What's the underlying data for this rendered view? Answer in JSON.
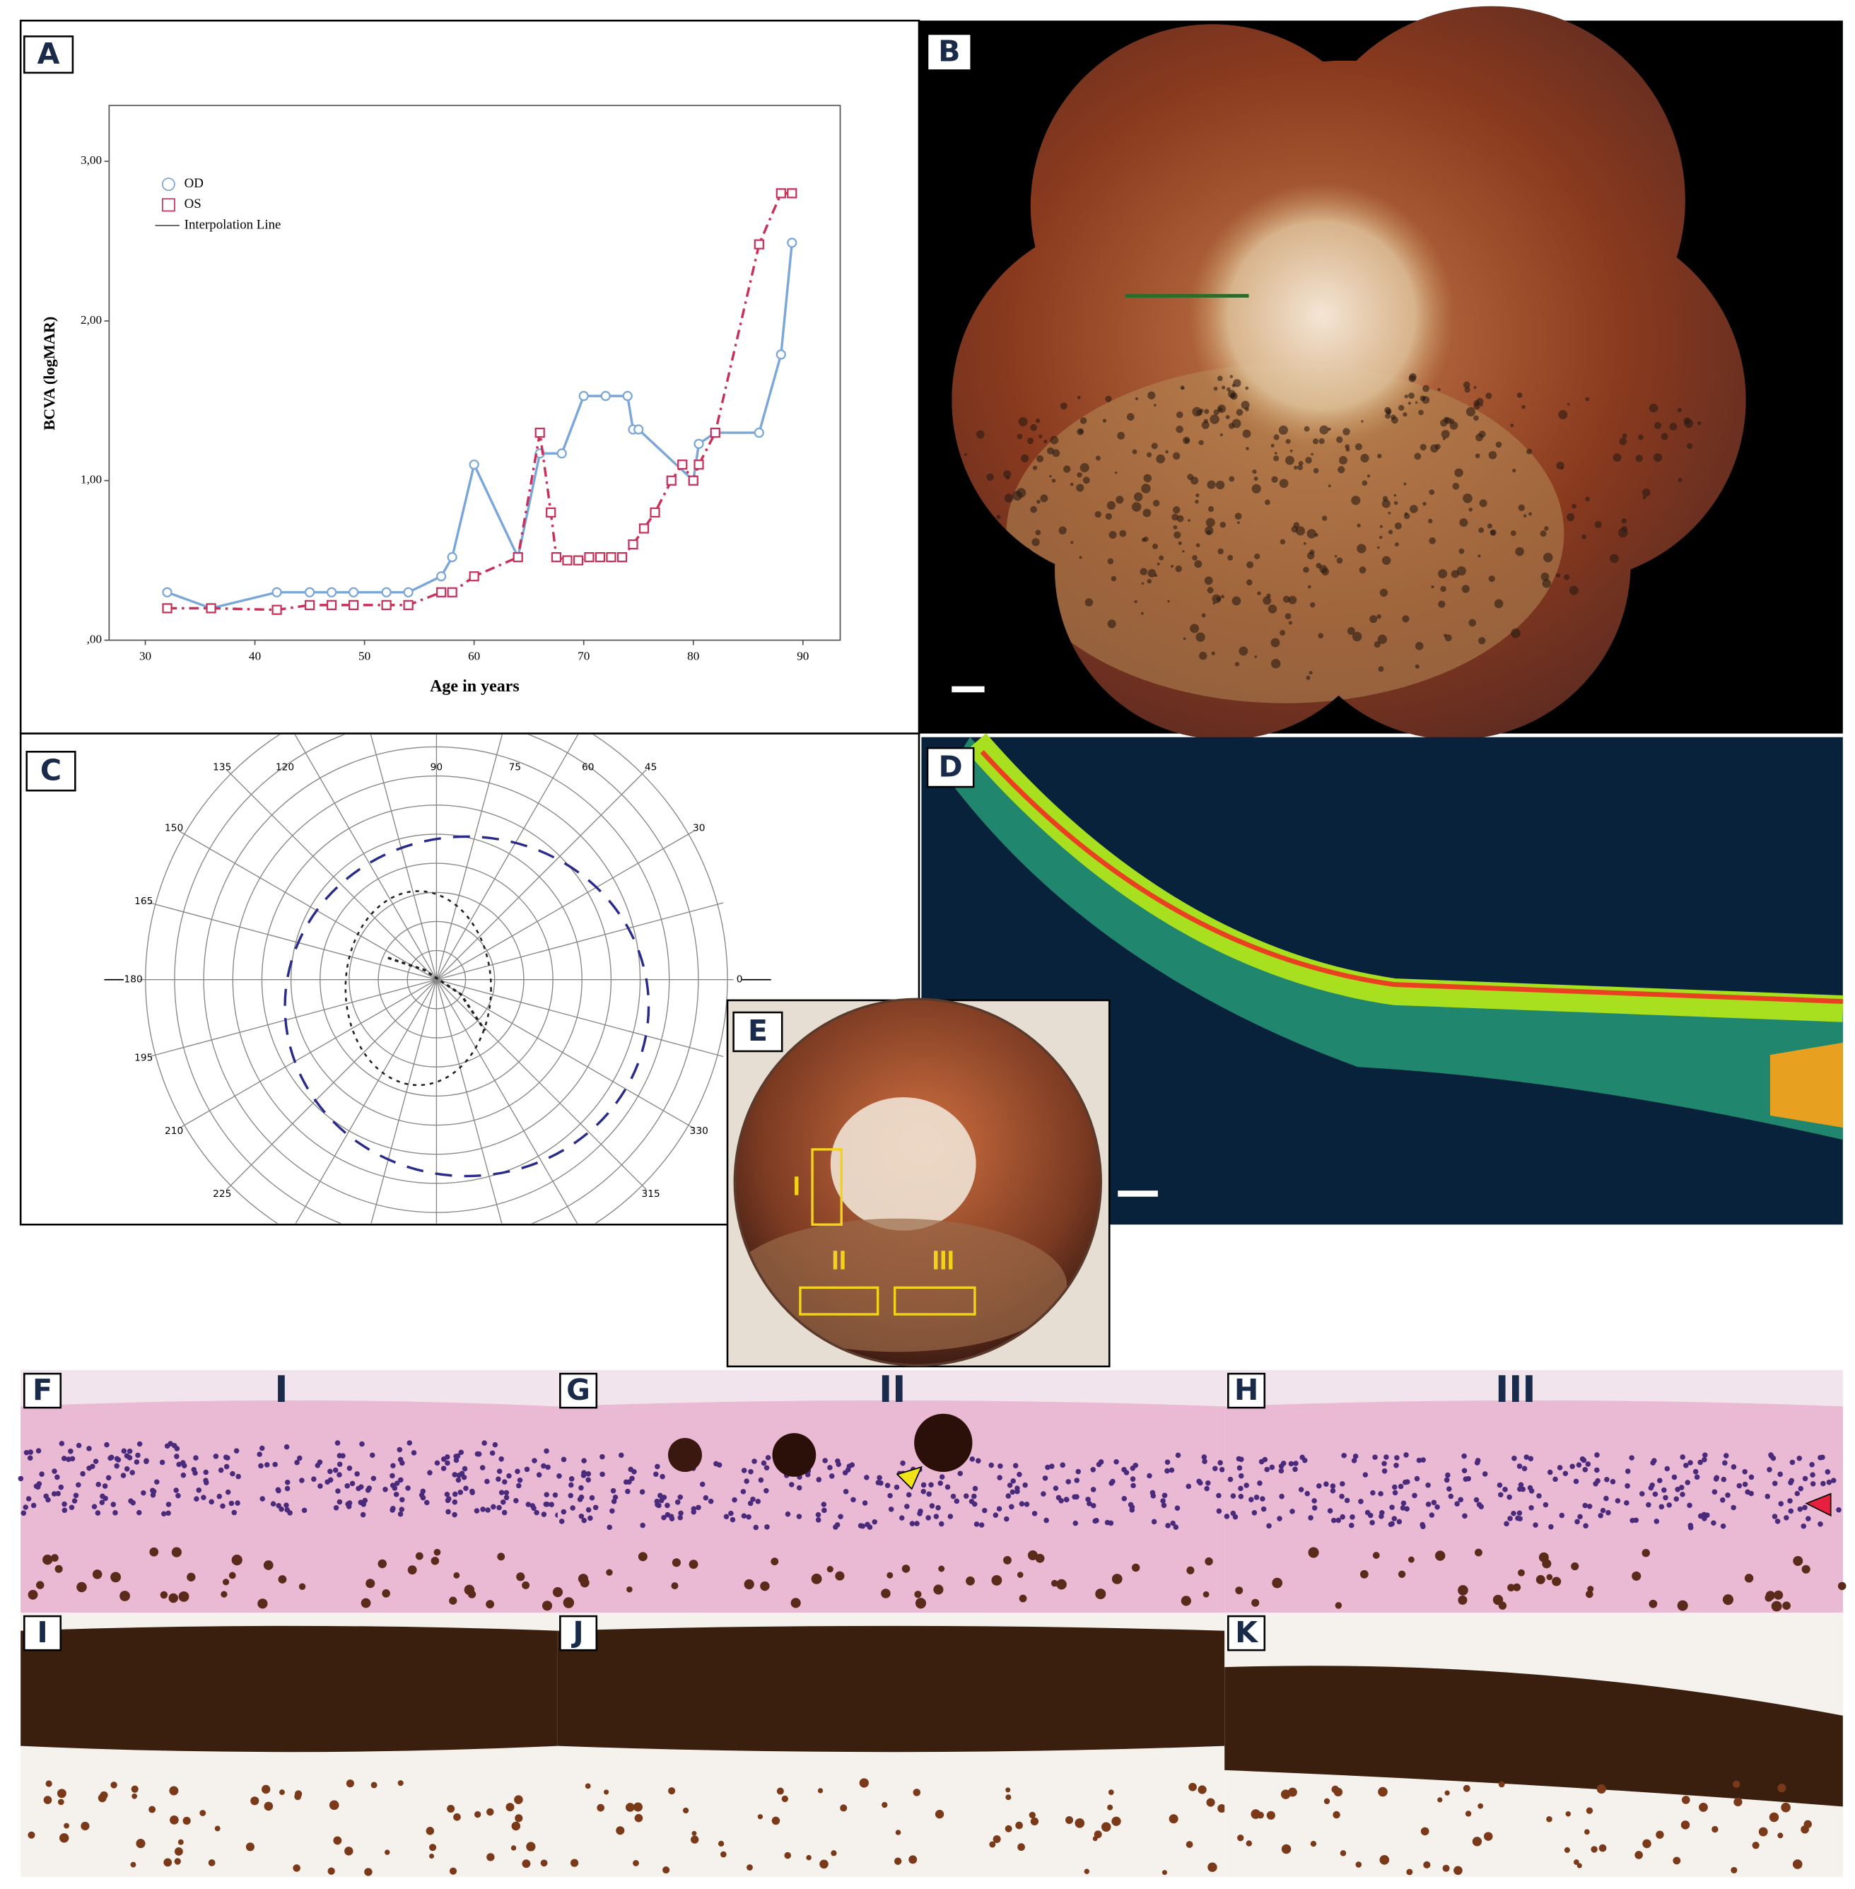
{
  "chart_data": {
    "type": "line",
    "xlabel": "Age in years",
    "ylabel": "BCVA (logMAR)",
    "xlim": [
      26.7,
      93.4
    ],
    "ylim": [
      0,
      3.35
    ],
    "xticks": [
      30,
      40,
      50,
      60,
      70,
      80,
      90
    ],
    "yticks": [
      {
        "value": 0,
        "label": ",00"
      },
      {
        "value": 1,
        "label": "1,00"
      },
      {
        "value": 2,
        "label": "2,00"
      },
      {
        "value": 3,
        "label": "3,00"
      }
    ],
    "grid": false,
    "interpolation_label": "Interpolation Line",
    "series": [
      {
        "name": "OD",
        "color": "#7aa6d8",
        "marker": "circle",
        "linestyle": "solid",
        "x": [
          32,
          36,
          42,
          45,
          47,
          49,
          52,
          54,
          57,
          58,
          60,
          64,
          66,
          68,
          70,
          72,
          74,
          74.5,
          75,
          80,
          80.5,
          82,
          86,
          88,
          89
        ],
        "values": [
          0.3,
          0.2,
          0.3,
          0.3,
          0.3,
          0.3,
          0.3,
          0.3,
          0.4,
          0.52,
          1.1,
          0.52,
          1.17,
          1.17,
          1.53,
          1.53,
          1.53,
          1.32,
          1.32,
          1.0,
          1.23,
          1.3,
          1.3,
          1.79,
          2.49
        ]
      },
      {
        "name": "OS",
        "color": "#c8305a",
        "marker": "square",
        "linestyle": "dashdot",
        "x": [
          32,
          36,
          42,
          45,
          47,
          49,
          52,
          54,
          57,
          58,
          60,
          64,
          66,
          67,
          67.5,
          68.5,
          69.5,
          70.5,
          71.5,
          72.5,
          73.5,
          74.5,
          75.5,
          76.5,
          78,
          79,
          80,
          80.5,
          82,
          86,
          88,
          89
        ],
        "values": [
          0.2,
          0.2,
          0.19,
          0.22,
          0.22,
          0.22,
          0.22,
          0.22,
          0.3,
          0.3,
          0.4,
          0.52,
          1.3,
          0.8,
          0.52,
          0.5,
          0.5,
          0.52,
          0.52,
          0.52,
          0.52,
          0.6,
          0.7,
          0.8,
          1.0,
          1.1,
          1.0,
          1.1,
          1.3,
          2.48,
          2.8,
          2.8
        ]
      }
    ]
  },
  "panel_labels": [
    "A",
    "B",
    "C",
    "D",
    "E",
    "F",
    "G",
    "H",
    "I",
    "J",
    "K"
  ],
  "region_labels": [
    "I",
    "II",
    "III"
  ],
  "perimetry": {
    "angle_labels": [
      120,
      90,
      75,
      60,
      45,
      135,
      150,
      30,
      165,
      180,
      0,
      195,
      210,
      330,
      225,
      315
    ]
  }
}
